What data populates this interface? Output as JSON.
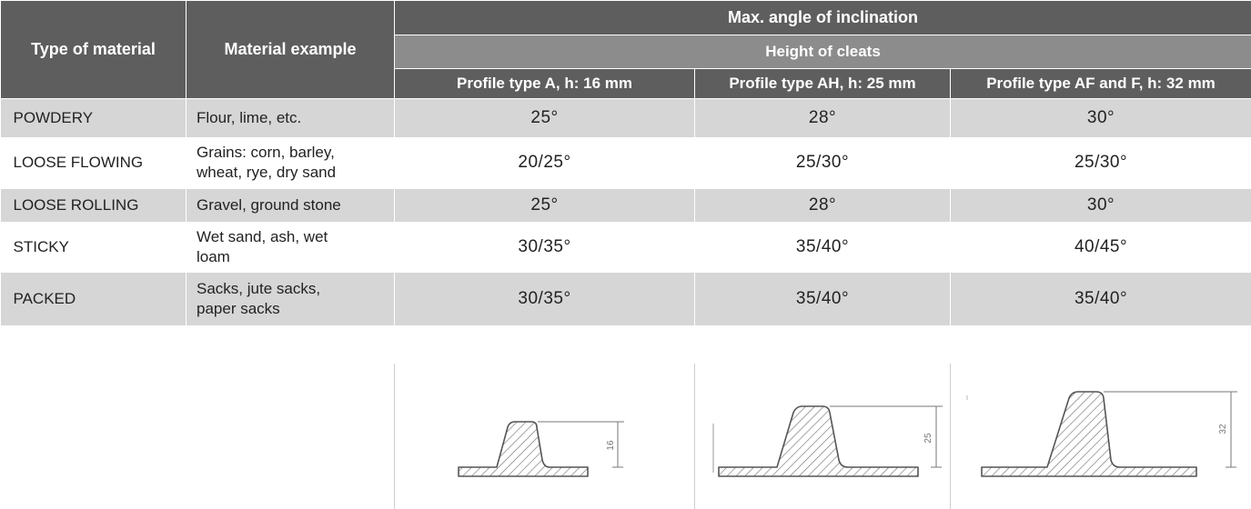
{
  "header": {
    "type_of_material": "Type of material",
    "material_example": "Material example",
    "max_angle": "Max. angle of inclination",
    "height_of_cleats": "Height of cleats",
    "profiles": [
      "Profile type A, h: 16 mm",
      "Profile type AH, h: 25 mm",
      "Profile type AF and F, h: 32 mm"
    ]
  },
  "rows": [
    {
      "type": "POWDERY",
      "example_lines": [
        "Flour, lime, etc."
      ],
      "a": "25°",
      "ah": "28°",
      "af": "30°"
    },
    {
      "type": "LOOSE FLOWING",
      "example_lines": [
        "Grains: corn, barley,",
        "wheat, rye, dry sand"
      ],
      "a": "20/25°",
      "ah": "25/30°",
      "af": "25/30°"
    },
    {
      "type": "LOOSE ROLLING",
      "example_lines": [
        "Gravel, ground stone"
      ],
      "a": "25°",
      "ah": "28°",
      "af": "30°"
    },
    {
      "type": "STICKY",
      "example_lines": [
        "Wet sand, ash, wet",
        "loam"
      ],
      "a": "30/35°",
      "ah": "35/40°",
      "af": "40/45°"
    },
    {
      "type": "PACKED",
      "example_lines": [
        "Sacks, jute sacks,",
        "paper sacks"
      ],
      "a": "30/35°",
      "ah": "35/40°",
      "af": "35/40°"
    }
  ],
  "drawings": {
    "dimension_labels": [
      "16",
      "25",
      "32"
    ]
  }
}
